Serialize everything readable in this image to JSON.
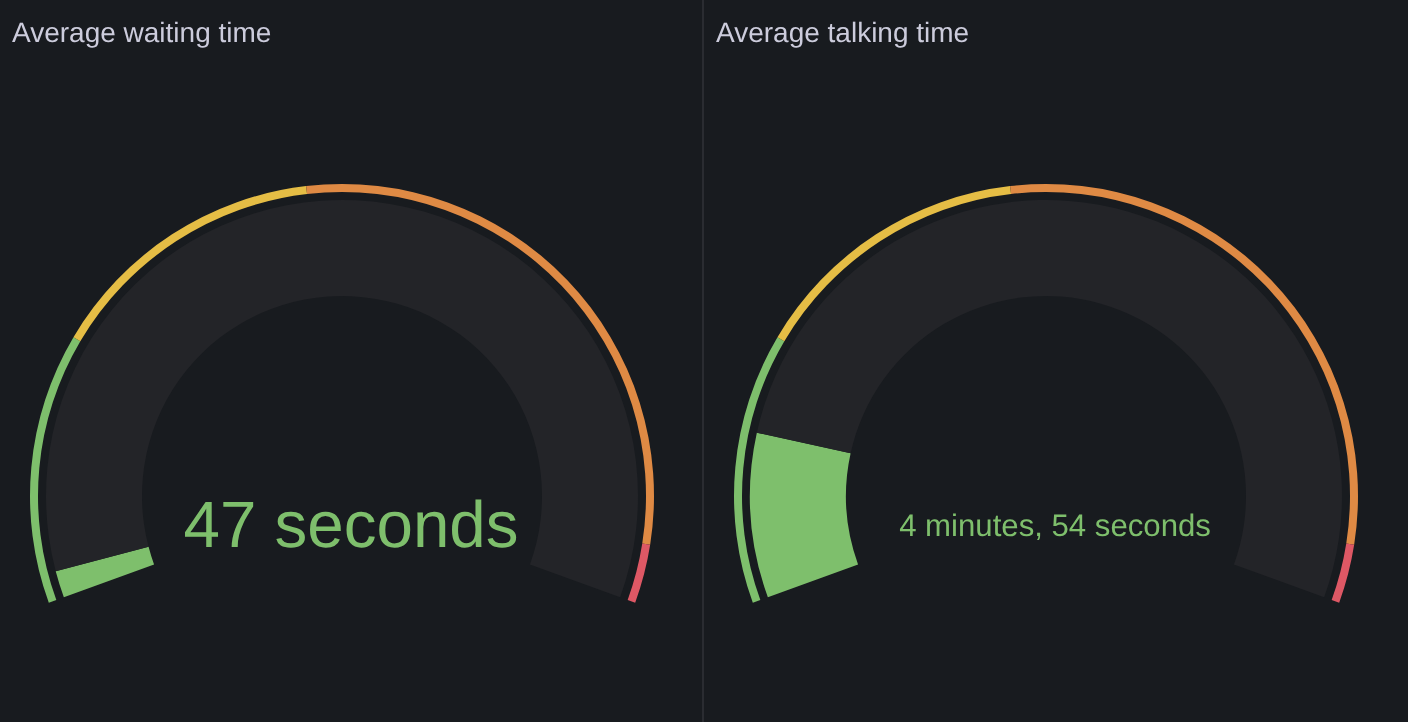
{
  "chart_data": [
    {
      "type": "donut",
      "title": "Average waiting time",
      "series": [
        {
          "values": [
            2.4,
            97.6
          ],
          "colors": [
            "#7ebf6c",
            "#232428"
          ]
        },
        {
          "values": [
            23,
            24,
            48,
            5
          ],
          "colors": [
            "#7ebf6c",
            "#e5bd45",
            "#df8a44",
            "#de5865"
          ]
        }
      ],
      "annotations": [
        "47 seconds"
      ]
    },
    {
      "type": "donut",
      "title": "Average talking time",
      "series": [
        {
          "values": [
            14.7,
            85.3
          ],
          "colors": [
            "#7ebf6c",
            "#232428"
          ]
        },
        {
          "values": [
            23,
            24,
            48,
            5
          ],
          "colors": [
            "#7ebf6c",
            "#e5bd45",
            "#df8a44",
            "#de5865"
          ]
        }
      ],
      "annotations": [
        "4 minutes, 54 seconds"
      ]
    }
  ]
}
